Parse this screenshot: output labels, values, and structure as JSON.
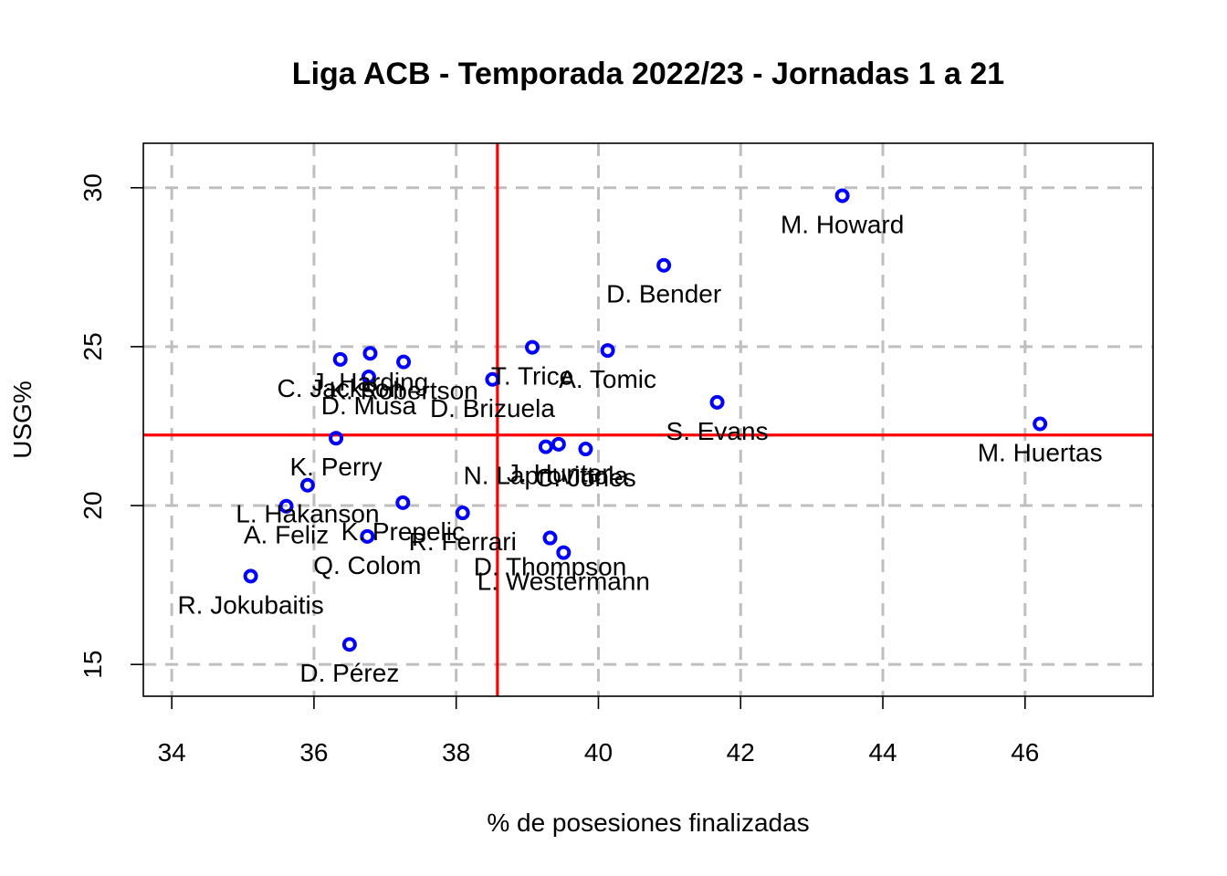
{
  "chart_data": {
    "type": "scatter",
    "title": "Liga ACB - Temporada 2022/23 - Jornadas 1 a 21",
    "xlabel": "% de posesiones finalizadas",
    "ylabel": "USG%",
    "xlim": [
      33.6,
      47.8
    ],
    "ylim": [
      14.0,
      31.4
    ],
    "xticks": [
      34,
      36,
      38,
      40,
      42,
      44,
      46
    ],
    "yticks": [
      15,
      20,
      25,
      30
    ],
    "grid": true,
    "reference_lines": {
      "x": 38.58,
      "y": 22.22,
      "color": "#ff0000"
    },
    "point_color": "#0000ff",
    "points": [
      {
        "label": "M. Howard",
        "x": 43.43,
        "y": 29.75
      },
      {
        "label": "D. Bender",
        "x": 40.92,
        "y": 27.56
      },
      {
        "label": "A. Tomic",
        "x": 40.13,
        "y": 24.88
      },
      {
        "label": "D. Brizuela",
        "x": 38.51,
        "y": 23.97
      },
      {
        "label": "T. Trice",
        "x": 39.07,
        "y": 24.98
      },
      {
        "label": "S. Evans",
        "x": 41.67,
        "y": 23.25
      },
      {
        "label": "M. Huertas",
        "x": 46.21,
        "y": 22.57
      },
      {
        "label": "J. Harding",
        "x": 36.79,
        "y": 24.79
      },
      {
        "label": "C. Jackson",
        "x": 36.37,
        "y": 24.6
      },
      {
        "label": "K. Robertson",
        "x": 37.26,
        "y": 24.52
      },
      {
        "label": "D. Musa",
        "x": 36.77,
        "y": 24.05
      },
      {
        "label": "K. Perry",
        "x": 36.31,
        "y": 22.12
      },
      {
        "label": "J. Hunter",
        "x": 39.44,
        "y": 21.93
      },
      {
        "label": "N. Laprovittola",
        "x": 39.26,
        "y": 21.85
      },
      {
        "label": "C. Jones",
        "x": 39.82,
        "y": 21.78
      },
      {
        "label": "L. Hakanson",
        "x": 35.91,
        "y": 20.64
      },
      {
        "label": "K. Prepelic",
        "x": 37.25,
        "y": 20.09
      },
      {
        "label": "A. Feliz",
        "x": 35.61,
        "y": 19.98
      },
      {
        "label": "R. Ferrari",
        "x": 38.09,
        "y": 19.77
      },
      {
        "label": "Q. Colom",
        "x": 36.75,
        "y": 19.03
      },
      {
        "label": "D. Thompson",
        "x": 39.32,
        "y": 18.98
      },
      {
        "label": "L. Westermann",
        "x": 39.51,
        "y": 18.52
      },
      {
        "label": "R. Jokubaitis",
        "x": 35.11,
        "y": 17.78
      },
      {
        "label": "D. Pérez",
        "x": 36.5,
        "y": 15.63
      }
    ]
  }
}
